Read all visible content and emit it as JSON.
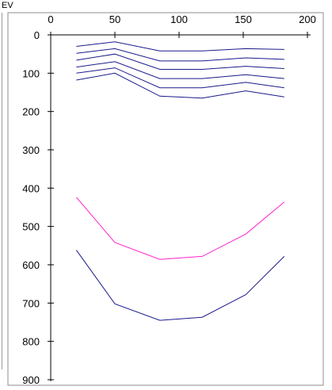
{
  "chart_data": {
    "type": "line",
    "ylabel": "EV",
    "xlabel": "",
    "title": "",
    "xlim": [
      0,
      200
    ],
    "ylim": [
      0,
      900
    ],
    "y_inverted": true,
    "x_ticks": [
      0,
      50,
      100,
      150,
      200
    ],
    "y_ticks": [
      0,
      100,
      200,
      300,
      400,
      500,
      600,
      700,
      800,
      900
    ],
    "x": [
      20,
      50,
      85,
      118,
      152,
      182
    ],
    "series": [
      {
        "color": "#1a1a8c",
        "values": [
          30,
          18,
          42,
          42,
          36,
          38
        ]
      },
      {
        "color": "#1a1a8c",
        "values": [
          48,
          36,
          68,
          68,
          60,
          64
        ]
      },
      {
        "color": "#1a1a8c",
        "values": [
          66,
          50,
          90,
          90,
          82,
          88
        ]
      },
      {
        "color": "#1a1a8c",
        "values": [
          84,
          70,
          114,
          114,
          104,
          114
        ]
      },
      {
        "color": "#1a1a8c",
        "values": [
          100,
          86,
          138,
          138,
          124,
          138
        ]
      },
      {
        "color": "#1a1a8c",
        "values": [
          118,
          100,
          160,
          165,
          146,
          162
        ]
      },
      {
        "color": "#ff22cc",
        "values": [
          424,
          542,
          586,
          578,
          520,
          436
        ]
      },
      {
        "color": "#1a1a8c",
        "values": [
          562,
          702,
          745,
          737,
          678,
          578
        ]
      }
    ]
  }
}
